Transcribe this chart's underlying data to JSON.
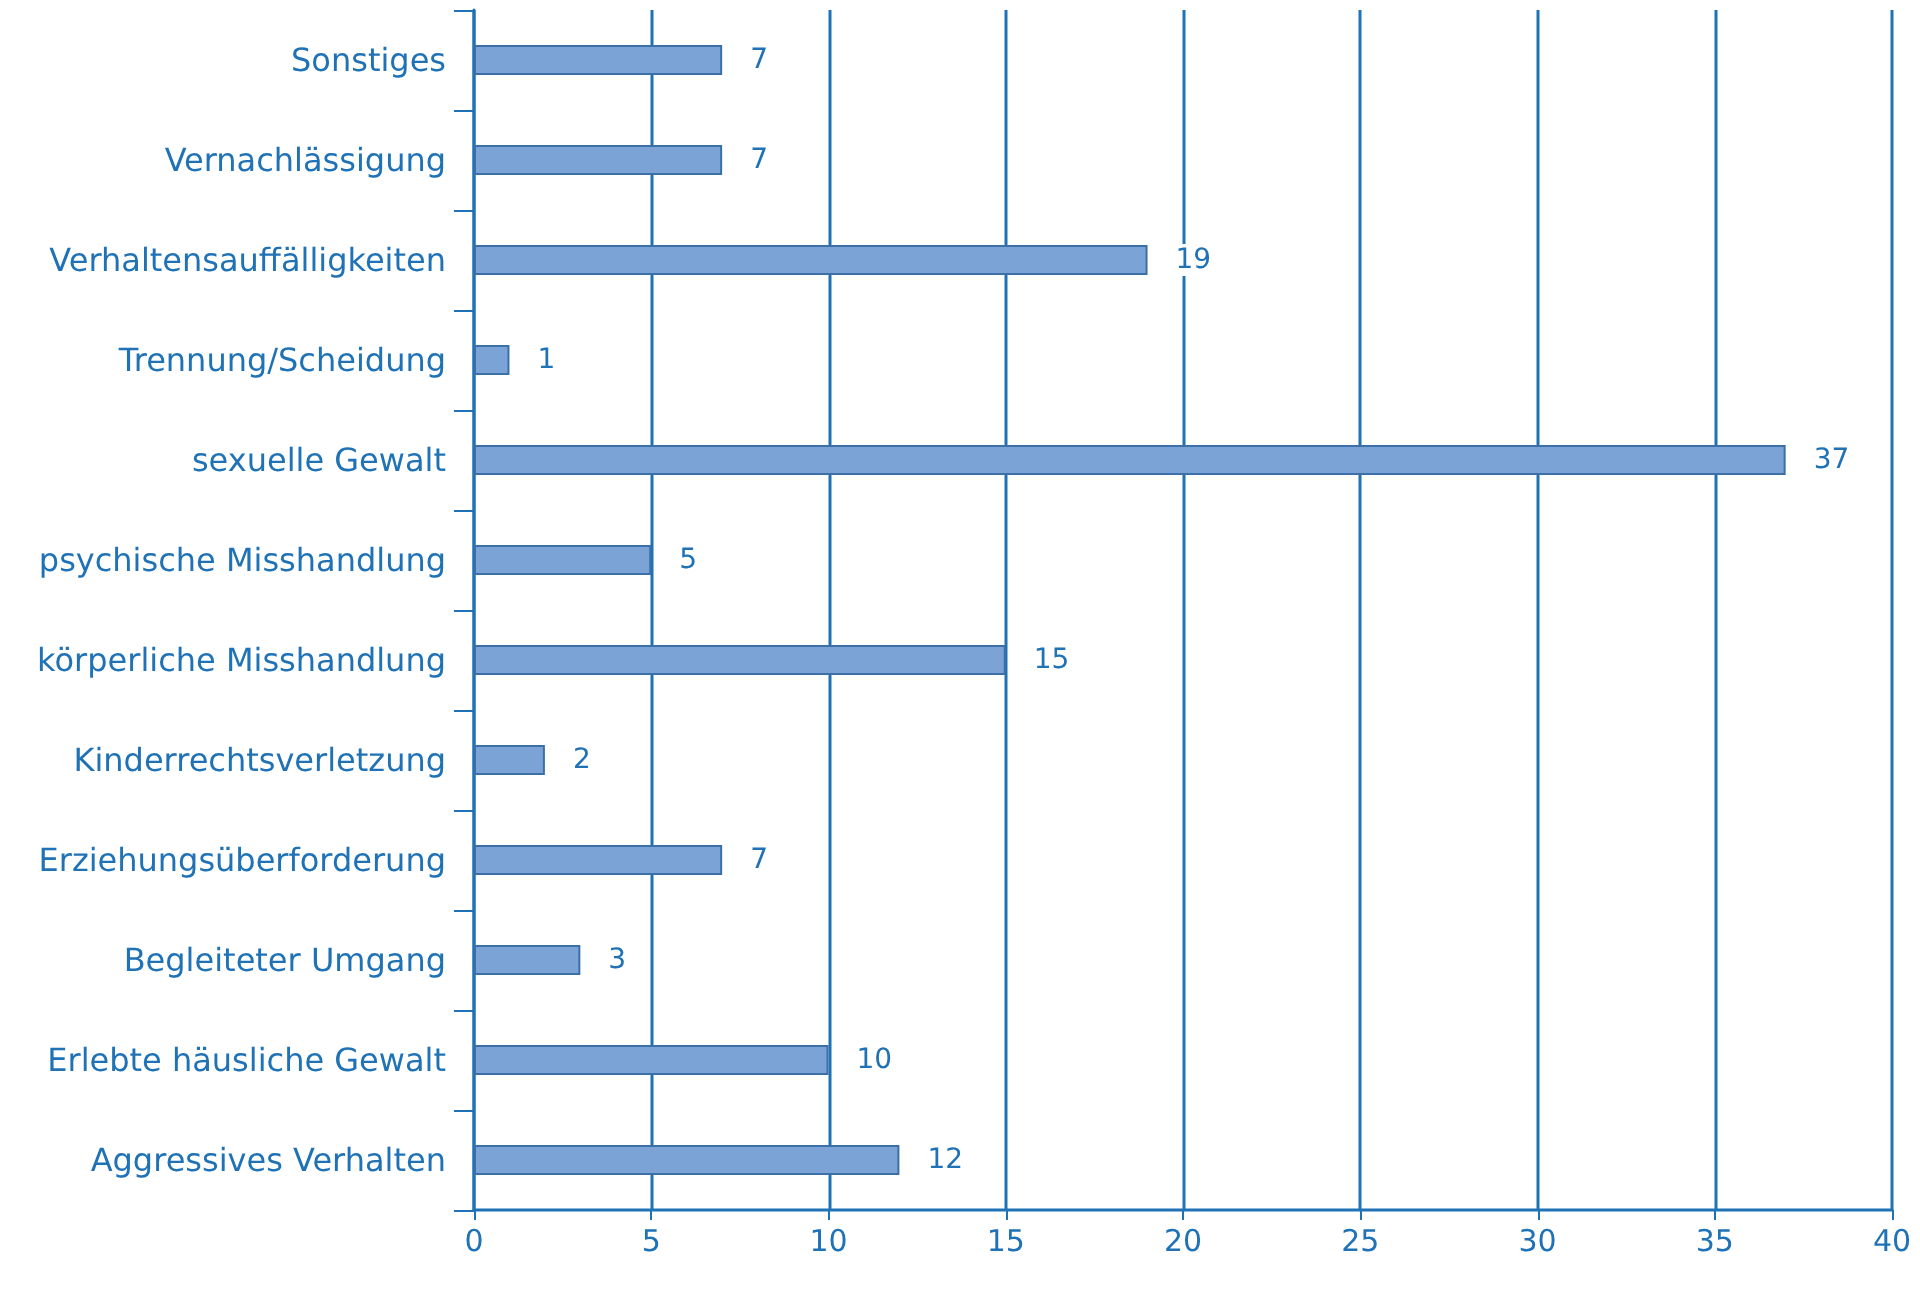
{
  "chart_data": {
    "type": "bar",
    "orientation": "horizontal",
    "categories": [
      "Sonstiges",
      "Vernachlässigung",
      "Verhaltensauffälligkeiten",
      "Trennung/Scheidung",
      "sexuelle Gewalt",
      "psychische Misshandlung",
      "körperliche Misshandlung",
      "Kinderrechtsverletzung",
      "Erziehungsüberforderung",
      "Begleiteter Umgang",
      "Erlebte häusliche Gewalt",
      "Aggressives Verhalten"
    ],
    "values": [
      7,
      7,
      19,
      1,
      37,
      5,
      15,
      2,
      7,
      3,
      10,
      12
    ],
    "color": "#7ba3d6",
    "xlim": [
      0,
      40
    ],
    "xticks": [
      0,
      5,
      10,
      15,
      20,
      25,
      30,
      35,
      40
    ],
    "grid": "x",
    "data_labels": true
  }
}
